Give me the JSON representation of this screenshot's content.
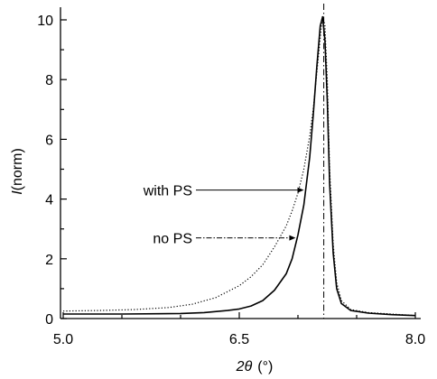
{
  "chart_data": {
    "type": "line",
    "xlabel": {
      "symbol": "2θ",
      "unit": "(°)"
    },
    "ylabel": {
      "symbol": "I",
      "unit": "(norm)"
    },
    "xlim": [
      5.0,
      8.0
    ],
    "ylim": [
      0,
      10.3
    ],
    "xticks": [
      5.0,
      6.5,
      8.0
    ],
    "xtick_labels": [
      "5.0",
      "6.5",
      "8.0"
    ],
    "xminor_step": 0.5,
    "yticks": [
      0,
      2,
      4,
      6,
      8,
      10
    ],
    "ytick_labels": [
      "0",
      "2",
      "4",
      "6",
      "8",
      "10"
    ],
    "yminor_step": 1,
    "grid": false,
    "reference_line": {
      "x": 7.22,
      "style": "dash-dot"
    },
    "series": [
      {
        "name": "no PS",
        "style": "solid",
        "x": [
          5.0,
          5.5,
          5.8,
          6.0,
          6.2,
          6.4,
          6.5,
          6.6,
          6.7,
          6.8,
          6.9,
          6.95,
          7.0,
          7.05,
          7.1,
          7.13,
          7.16,
          7.19,
          7.21,
          7.23,
          7.25,
          7.27,
          7.3,
          7.33,
          7.37,
          7.45,
          7.6,
          7.8,
          8.0
        ],
        "y": [
          0.15,
          0.15,
          0.16,
          0.17,
          0.2,
          0.27,
          0.32,
          0.42,
          0.6,
          0.95,
          1.5,
          2.0,
          2.8,
          3.8,
          5.4,
          6.8,
          8.4,
          9.8,
          10.1,
          9.3,
          7.3,
          4.5,
          2.2,
          1.0,
          0.5,
          0.27,
          0.18,
          0.13,
          0.1
        ]
      },
      {
        "name": "with PS",
        "style": "dotted",
        "x": [
          5.0,
          5.3,
          5.6,
          5.9,
          6.1,
          6.3,
          6.5,
          6.6,
          6.7,
          6.8,
          6.9,
          6.95,
          7.0,
          7.05,
          7.1,
          7.13,
          7.16,
          7.19,
          7.21,
          7.23,
          7.25,
          7.27,
          7.3,
          7.33,
          7.37,
          7.45,
          7.6,
          7.8,
          8.0
        ],
        "y": [
          0.25,
          0.27,
          0.3,
          0.37,
          0.48,
          0.7,
          1.1,
          1.4,
          1.8,
          2.4,
          3.1,
          3.6,
          4.2,
          5.0,
          6.1,
          7.0,
          8.2,
          9.4,
          10.15,
          9.8,
          8.0,
          5.0,
          2.5,
          1.2,
          0.6,
          0.3,
          0.2,
          0.15,
          0.1
        ]
      }
    ],
    "annotations": [
      {
        "text": "with PS",
        "series": "with PS",
        "label_x": 6.1,
        "label_y": 4.3,
        "arrow_to_x": 7.05,
        "arrow_to_y": 4.3
      },
      {
        "text": "no PS",
        "series": "no PS",
        "label_x": 6.1,
        "label_y": 2.7,
        "arrow_to_x": 6.98,
        "arrow_to_y": 2.7
      }
    ]
  }
}
